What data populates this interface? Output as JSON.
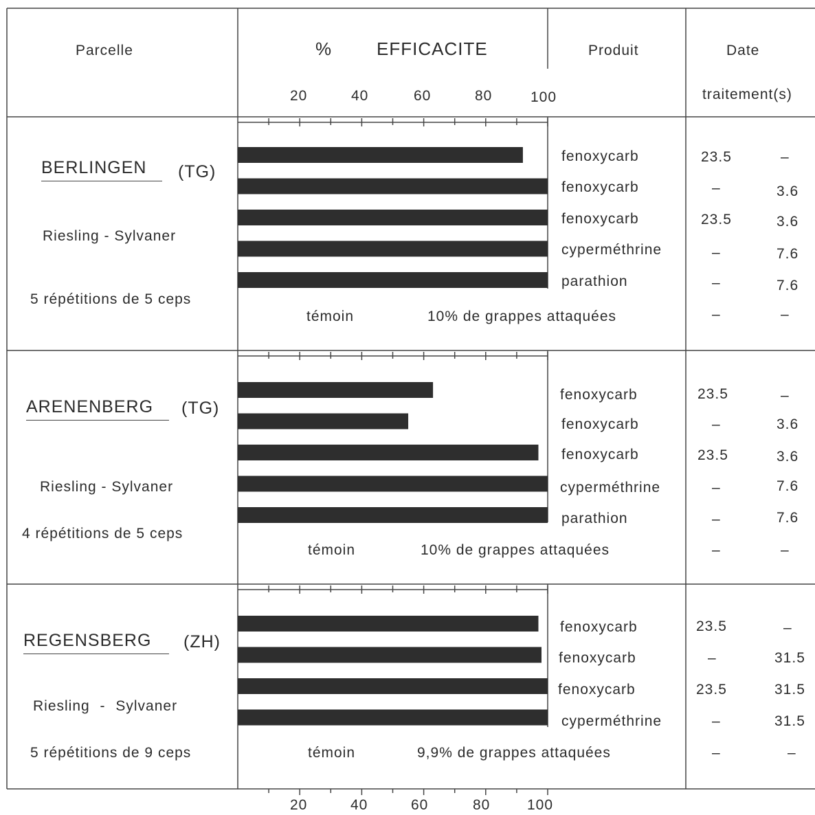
{
  "header": {
    "parcelle": "Parcelle",
    "percent": "%",
    "efficacite": "EFFICACITE",
    "produit": "Produit",
    "date": "Date",
    "traitements": "traitement(s)"
  },
  "axis_ticks": [
    "20",
    "40",
    "60",
    "80",
    "100"
  ],
  "chart_data": {
    "type": "bar",
    "orientation": "horizontal",
    "xlim": [
      0,
      100
    ],
    "xlabel": "% EFFICACITE",
    "ticks": [
      20,
      40,
      60,
      80,
      100
    ],
    "panels": [
      {
        "site": "BERLINGEN",
        "canton": "(TG)",
        "variety": "Riesling - Sylvaner",
        "repetitions": "5 répétitions de 5 ceps",
        "temoin_label": "témoin",
        "temoin_value": "10% de grappes attaquées",
        "temoin_dates": [
          "–",
          "–"
        ],
        "rows": [
          {
            "product": "fenoxycarb",
            "value": 92,
            "date1": "23.5",
            "date2": "–"
          },
          {
            "product": "fenoxycarb",
            "value": 100,
            "date1": "–",
            "date2": "3.6"
          },
          {
            "product": "fenoxycarb",
            "value": 100,
            "date1": "23.5",
            "date2": "3.6"
          },
          {
            "product": "cyperméthrine",
            "value": 100,
            "date1": "–",
            "date2": "7.6"
          },
          {
            "product": "parathion",
            "value": 100,
            "date1": "–",
            "date2": "7.6"
          }
        ]
      },
      {
        "site": "ARENENBERG",
        "canton": "(TG)",
        "variety": "Riesling - Sylvaner",
        "repetitions": "4 répétitions de 5 ceps",
        "temoin_label": "témoin",
        "temoin_value": "10% de grappes attaquées",
        "temoin_dates": [
          "–",
          "–"
        ],
        "rows": [
          {
            "product": "fenoxycarb",
            "value": 63,
            "date1": "23.5",
            "date2": "–"
          },
          {
            "product": "fenoxycarb",
            "value": 55,
            "date1": "–",
            "date2": "3.6"
          },
          {
            "product": "fenoxycarb",
            "value": 97,
            "date1": "23.5",
            "date2": "3.6"
          },
          {
            "product": "cyperméthrine",
            "value": 100,
            "date1": "–",
            "date2": "7.6"
          },
          {
            "product": "parathion",
            "value": 100,
            "date1": "–",
            "date2": "7.6"
          }
        ]
      },
      {
        "site": "REGENSBERG",
        "canton": "(ZH)",
        "variety": "Riesling - Sylvaner",
        "repetitions": "5 répétitions de 9 ceps",
        "temoin_label": "témoin",
        "temoin_value": "9,9% de grappes attaquées",
        "temoin_dates": [
          "–",
          "–"
        ],
        "rows": [
          {
            "product": "fenoxycarb",
            "value": 97,
            "date1": "23.5",
            "date2": "–"
          },
          {
            "product": "fenoxycarb",
            "value": 98,
            "date1": "–",
            "date2": "31.5"
          },
          {
            "product": "fenoxycarb",
            "value": 100,
            "date1": "23.5",
            "date2": "31.5"
          },
          {
            "product": "cyperméthrine",
            "value": 100,
            "date1": "–",
            "date2": "31.5"
          }
        ]
      }
    ]
  }
}
